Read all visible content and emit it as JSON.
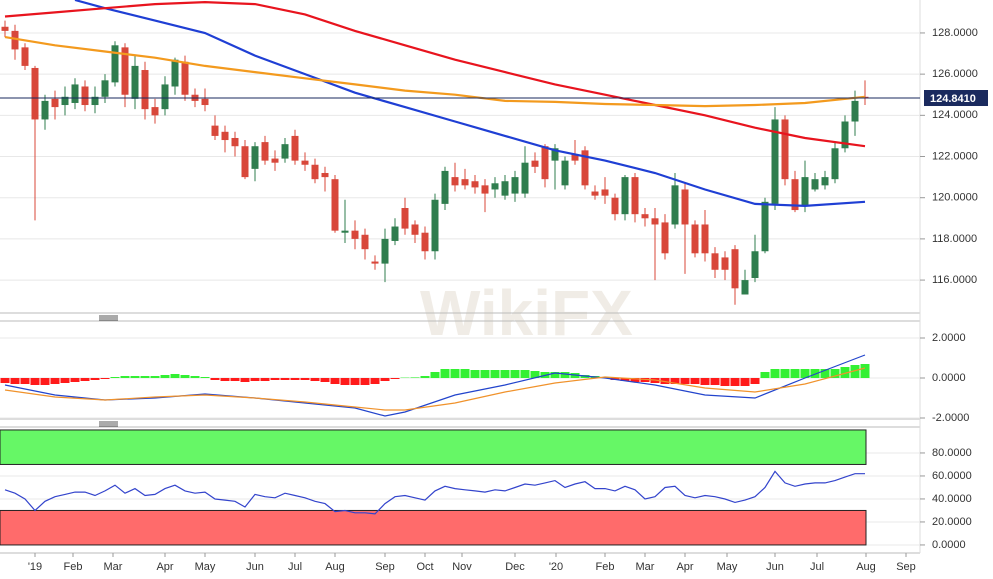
{
  "watermark": "WikiFX",
  "chart_data": [
    {
      "type": "candlestick",
      "xlim": [
        -0.5,
        91.5
      ],
      "ylim": [
        114.45,
        129.6
      ],
      "yticks": [
        {
          "value": 116,
          "label": "116.0000"
        },
        {
          "value": 118,
          "label": "118.0000"
        },
        {
          "value": 120,
          "label": "120.0000"
        },
        {
          "value": 122,
          "label": "122.0000"
        },
        {
          "value": 124,
          "label": "124.0000"
        },
        {
          "value": 126,
          "label": "126.0000"
        },
        {
          "value": 128,
          "label": "128.0000"
        }
      ],
      "grid": true,
      "up_color": "#2f7d4e",
      "down_color": "#d8473a",
      "candles": {
        "open": [
          128.3,
          128.1,
          127.3,
          126.3,
          123.8,
          124.8,
          124.5,
          124.6,
          125.4,
          124.5,
          124.9,
          125.6,
          127.3,
          124.8,
          126.2,
          124.4,
          124.3,
          125.4,
          126.6,
          125.0,
          124.8,
          123.5,
          123.2,
          122.9,
          122.5,
          121.4,
          122.7,
          121.9,
          121.9,
          123.0,
          121.8,
          121.6,
          121.2,
          120.9,
          118.3,
          118.4,
          118.2,
          116.9,
          116.8,
          117.9,
          119.5,
          118.7,
          118.3,
          117.4,
          119.7,
          121.0,
          120.9,
          120.8,
          120.6,
          120.4,
          120.1,
          120.2,
          120.2,
          121.8,
          122.5,
          121.8,
          120.6,
          122.1,
          122.3,
          120.3,
          120.4,
          120.0,
          119.2,
          121.0,
          119.2,
          119.0,
          118.8,
          118.7,
          120.4,
          118.7,
          118.7,
          117.3,
          117.1,
          117.5,
          115.3,
          116.1,
          117.4,
          119.7,
          123.8,
          120.9,
          119.6,
          120.4,
          120.6,
          120.9,
          122.4,
          123.7,
          124.9
        ],
        "high": [
          128.6,
          128.4,
          127.5,
          126.4,
          125.0,
          125.2,
          125.4,
          125.8,
          125.7,
          125.4,
          126.0,
          127.6,
          127.5,
          126.9,
          126.6,
          124.8,
          125.9,
          126.8,
          126.9,
          125.3,
          125.3,
          124.0,
          123.5,
          123.2,
          122.8,
          122.7,
          123.0,
          122.3,
          122.9,
          123.3,
          122.2,
          121.9,
          121.5,
          121.1,
          119.9,
          118.9,
          118.5,
          117.2,
          118.5,
          119.0,
          120.0,
          118.9,
          118.6,
          120.2,
          121.5,
          121.7,
          121.4,
          121.1,
          120.9,
          121.0,
          121.1,
          121.3,
          122.5,
          122.2,
          122.6,
          122.6,
          122.0,
          122.8,
          122.5,
          120.6,
          121.0,
          120.2,
          121.1,
          121.2,
          119.5,
          119.5,
          119.2,
          121.2,
          120.7,
          118.9,
          119.4,
          117.6,
          117.4,
          117.7,
          116.5,
          118.2,
          120.0,
          124.4,
          124.0,
          121.3,
          121.8,
          121.2,
          121.3,
          122.7,
          124.0,
          125.2,
          125.7
        ],
        "low": [
          127.8,
          126.7,
          126.2,
          118.9,
          123.3,
          123.8,
          124.0,
          124.3,
          124.2,
          124.1,
          124.6,
          125.4,
          124.4,
          124.3,
          123.8,
          123.6,
          124.0,
          125.0,
          124.7,
          124.4,
          124.2,
          122.8,
          122.2,
          122.0,
          120.9,
          120.8,
          121.6,
          121.3,
          121.7,
          121.6,
          121.3,
          120.7,
          120.3,
          118.3,
          117.8,
          117.5,
          117.0,
          116.5,
          115.9,
          117.7,
          118.2,
          117.8,
          117.0,
          117.0,
          119.4,
          120.3,
          120.4,
          120.2,
          119.3,
          120.0,
          119.9,
          119.8,
          120.0,
          121.2,
          120.5,
          120.4,
          120.4,
          121.6,
          120.4,
          119.9,
          119.7,
          118.9,
          118.9,
          118.8,
          118.6,
          116.0,
          117.0,
          118.5,
          116.3,
          117.1,
          116.9,
          116.1,
          116.0,
          114.8,
          115.3,
          115.9,
          117.3,
          119.4,
          120.6,
          119.3,
          119.3,
          120.3,
          120.4,
          120.7,
          122.2,
          123.0,
          124.5
        ],
        "close": [
          128.1,
          127.2,
          126.4,
          123.8,
          124.7,
          124.4,
          124.9,
          125.5,
          124.5,
          124.9,
          125.7,
          127.4,
          125.0,
          126.4,
          124.3,
          124.0,
          125.5,
          126.7,
          125.0,
          124.7,
          124.5,
          123.0,
          122.8,
          122.5,
          121.0,
          122.5,
          121.8,
          121.7,
          122.6,
          121.8,
          121.6,
          120.9,
          121.0,
          118.4,
          118.4,
          118.0,
          117.5,
          116.8,
          118.0,
          118.6,
          118.5,
          118.2,
          117.4,
          119.9,
          121.3,
          120.6,
          120.6,
          120.5,
          120.2,
          120.7,
          120.8,
          121.0,
          121.7,
          121.5,
          120.9,
          122.4,
          121.8,
          121.8,
          120.6,
          120.1,
          120.1,
          119.2,
          121.0,
          119.2,
          119.0,
          118.7,
          117.3,
          120.6,
          118.7,
          117.3,
          117.3,
          116.5,
          116.5,
          115.6,
          116.0,
          117.4,
          119.8,
          123.8,
          120.9,
          119.4,
          121.0,
          120.9,
          121.0,
          122.4,
          123.7,
          124.7,
          124.84
        ]
      },
      "overlays": [
        {
          "color": "#1f3fd4",
          "x": [
            7,
            10,
            15,
            20,
            25,
            30,
            35,
            40,
            45,
            50,
            55,
            60,
            65,
            70,
            75,
            80,
            86
          ],
          "values": [
            129.6,
            129.2,
            128.6,
            128.0,
            126.9,
            126.0,
            125.1,
            124.4,
            123.7,
            123.0,
            122.3,
            121.8,
            121.2,
            120.4,
            119.7,
            119.6,
            119.8
          ]
        },
        {
          "color": "#e8141e",
          "x": [
            0,
            5,
            10,
            15,
            20,
            25,
            30,
            35,
            40,
            45,
            50,
            55,
            60,
            65,
            70,
            75,
            80,
            86
          ],
          "values": [
            128.8,
            129.0,
            129.2,
            129.4,
            129.5,
            129.4,
            128.9,
            128.1,
            127.4,
            126.7,
            126.1,
            125.5,
            125.0,
            124.5,
            124.0,
            123.4,
            122.9,
            122.5
          ]
        },
        {
          "color": "#f39a1e",
          "x": [
            0,
            5,
            10,
            15,
            20,
            25,
            30,
            35,
            40,
            45,
            50,
            55,
            60,
            65,
            70,
            75,
            80,
            86
          ],
          "values": [
            127.8,
            127.4,
            127.1,
            126.8,
            126.4,
            126.1,
            125.8,
            125.5,
            125.2,
            125.0,
            124.7,
            124.65,
            124.55,
            124.5,
            124.45,
            124.5,
            124.6,
            124.9
          ]
        }
      ],
      "last_price": {
        "value": 124.841,
        "label": "124.8410",
        "color": "#1a2a5e"
      }
    },
    {
      "type": "macd",
      "xlim": [
        -0.5,
        91.5
      ],
      "ylim": [
        -2,
        2.8
      ],
      "yticks": [
        {
          "value": -2,
          "label": "-2.0000"
        },
        {
          "value": 0,
          "label": "0.0000"
        },
        {
          "value": 2,
          "label": "2.0000"
        }
      ],
      "grid": true,
      "histogram": {
        "up_color": "#33f033",
        "down_color": "#ff1a1a",
        "values": [
          -0.25,
          -0.3,
          -0.3,
          -0.35,
          -0.35,
          -0.3,
          -0.25,
          -0.2,
          -0.15,
          -0.1,
          -0.05,
          0.05,
          0.1,
          0.1,
          0.1,
          0.1,
          0.15,
          0.2,
          0.15,
          0.1,
          0.05,
          -0.1,
          -0.15,
          -0.15,
          -0.2,
          -0.15,
          -0.15,
          -0.1,
          -0.1,
          -0.1,
          -0.1,
          -0.15,
          -0.2,
          -0.3,
          -0.35,
          -0.35,
          -0.35,
          -0.3,
          -0.15,
          -0.05,
          0.02,
          0.03,
          0.1,
          0.3,
          0.45,
          0.45,
          0.45,
          0.4,
          0.4,
          0.4,
          0.4,
          0.4,
          0.4,
          0.35,
          0.3,
          0.3,
          0.3,
          0.25,
          0.15,
          0.1,
          0.05,
          -0.1,
          -0.15,
          -0.2,
          -0.2,
          -0.25,
          -0.3,
          -0.3,
          -0.3,
          -0.3,
          -0.35,
          -0.35,
          -0.4,
          -0.4,
          -0.4,
          -0.3,
          0.3,
          0.45,
          0.45,
          0.45,
          0.45,
          0.45,
          0.45,
          0.45,
          0.55,
          0.65,
          0.7
        ]
      },
      "lines": [
        {
          "color": "#2244cc",
          "x": [
            0,
            5,
            10,
            15,
            20,
            25,
            30,
            35,
            38,
            40,
            45,
            50,
            55,
            60,
            65,
            70,
            75,
            80,
            86
          ],
          "values": [
            -0.35,
            -0.85,
            -1.1,
            -1.0,
            -0.8,
            -1.0,
            -1.25,
            -1.5,
            -1.9,
            -1.7,
            -0.85,
            -0.35,
            0.25,
            0.0,
            -0.35,
            -0.85,
            -1.0,
            0.0,
            1.15
          ]
        },
        {
          "color": "#f0922b",
          "x": [
            0,
            5,
            10,
            15,
            20,
            25,
            30,
            35,
            38,
            40,
            45,
            50,
            55,
            60,
            65,
            70,
            75,
            80,
            86
          ],
          "values": [
            -0.6,
            -0.95,
            -1.1,
            -0.95,
            -0.85,
            -1.0,
            -1.2,
            -1.45,
            -1.6,
            -1.6,
            -1.25,
            -0.7,
            -0.25,
            0.05,
            -0.1,
            -0.5,
            -0.7,
            -0.3,
            0.5
          ]
        }
      ]
    },
    {
      "type": "rsi",
      "xlim": [
        -0.5,
        91.5
      ],
      "ylim": [
        -7,
        101.7
      ],
      "yticks": [
        {
          "value": 0,
          "label": "0.0000"
        },
        {
          "value": 20,
          "label": "20.0000"
        },
        {
          "value": 40,
          "label": "40.0000"
        },
        {
          "value": 60,
          "label": "60.0000"
        },
        {
          "value": 80,
          "label": "80.0000"
        }
      ],
      "grid": true,
      "zones": [
        {
          "from": 70,
          "to": 100,
          "color": "#66f766"
        },
        {
          "from": 0,
          "to": 30,
          "color": "#ff6b6b"
        }
      ],
      "color": "#3344cc",
      "values": [
        48,
        45,
        40,
        30,
        38,
        42,
        44,
        46,
        46,
        43,
        47,
        52,
        45,
        49,
        43,
        44,
        49,
        52,
        47,
        45,
        46,
        40,
        39,
        38,
        33,
        44,
        42,
        41,
        45,
        43,
        41,
        38,
        36,
        29,
        30,
        28,
        28,
        27,
        36,
        42,
        43,
        41,
        39,
        47,
        51,
        49,
        48,
        47,
        46,
        48,
        47,
        50,
        53,
        52,
        54,
        56,
        50,
        53,
        55,
        49,
        49,
        47,
        51,
        48,
        40,
        42,
        50,
        51,
        43,
        41,
        43,
        42,
        40,
        37,
        39,
        42,
        50,
        64,
        54,
        51,
        53,
        54,
        54,
        56,
        59,
        62,
        62
      ],
      "xticks": [
        {
          "value": 3,
          "label": "'19"
        },
        {
          "value": 6.8,
          "label": "Feb"
        },
        {
          "value": 10.8,
          "label": "Mar"
        },
        {
          "value": 16,
          "label": "Apr"
        },
        {
          "value": 20,
          "label": "May"
        },
        {
          "value": 25,
          "label": "Jun"
        },
        {
          "value": 29,
          "label": "Jul"
        },
        {
          "value": 33,
          "label": "Aug"
        },
        {
          "value": 38,
          "label": "Sep"
        },
        {
          "value": 42,
          "label": "Oct"
        },
        {
          "value": 45.7,
          "label": "Nov"
        },
        {
          "value": 51,
          "label": "Dec"
        },
        {
          "value": 55.1,
          "label": "'20"
        },
        {
          "value": 60,
          "label": "Feb"
        },
        {
          "value": 64,
          "label": "Mar"
        },
        {
          "value": 68,
          "label": "Apr"
        },
        {
          "value": 72.2,
          "label": "May"
        },
        {
          "value": 77,
          "label": "Jun"
        },
        {
          "value": 81.2,
          "label": "Jul"
        },
        {
          "value": 86.1,
          "label": "Aug"
        },
        {
          "value": 90.1,
          "label": "Sep"
        }
      ]
    }
  ]
}
